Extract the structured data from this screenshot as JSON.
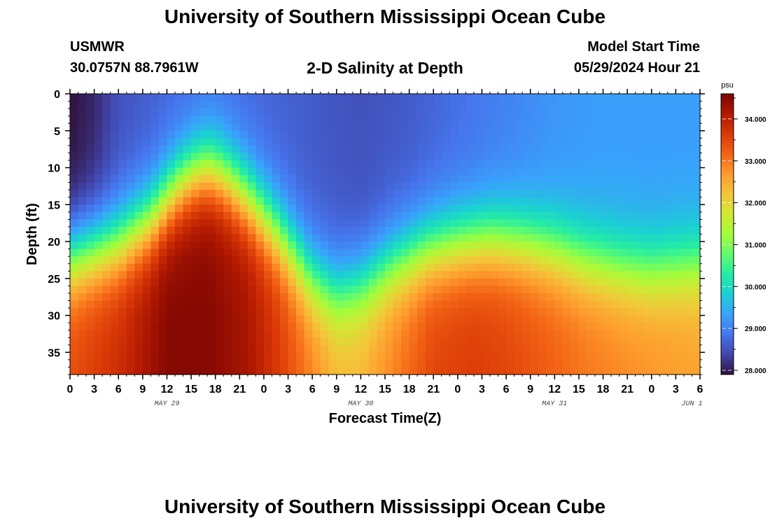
{
  "page": {
    "title": "University of Southern Mississippi Ocean Cube",
    "station": "USMWR",
    "coords": "30.0757N  88.7961W",
    "subtitle": "2-D Salinity at Depth",
    "model_label": "Model Start Time",
    "model_time": "05/29/2024 Hour 21",
    "footer_title": "University of Southern Mississippi Ocean Cube"
  },
  "chart_data": {
    "type": "heatmap",
    "title": "2-D Salinity at Depth",
    "xlabel": "Forecast Time(Z)",
    "ylabel": "Depth (ft)",
    "x_unit": "hours since 05/29 00Z",
    "xlim": [
      0,
      78
    ],
    "ylim": [
      0,
      38
    ],
    "y_inverted": true,
    "x_ticks": [
      0,
      3,
      6,
      9,
      12,
      15,
      18,
      21,
      24,
      27,
      30,
      33,
      36,
      39,
      42,
      45,
      48,
      51,
      54,
      57,
      60,
      63,
      66,
      69,
      72,
      75,
      78
    ],
    "x_tick_labels": [
      "0",
      "3",
      "6",
      "9",
      "12",
      "15",
      "18",
      "21",
      "0",
      "3",
      "6",
      "9",
      "12",
      "15",
      "18",
      "21",
      "0",
      "3",
      "6",
      "9",
      "12",
      "15",
      "18",
      "21",
      "0",
      "3",
      "6"
    ],
    "y_ticks": [
      0,
      5,
      10,
      15,
      20,
      25,
      30,
      35
    ],
    "y_tick_labels": [
      "0",
      "5",
      "10",
      "15",
      "20",
      "25",
      "30",
      "35"
    ],
    "date_labels": [
      {
        "x": 12,
        "label": "MAY 29"
      },
      {
        "x": 36,
        "label": "MAY 30"
      },
      {
        "x": 60,
        "label": "MAY 31"
      },
      {
        "x": 77,
        "label": "JUN 1"
      }
    ],
    "colorbar": {
      "unit": "psu",
      "range": [
        27.9,
        34.6
      ],
      "ticks": [
        28,
        29,
        30,
        31,
        32,
        33,
        34
      ],
      "tick_labels": [
        "28.000",
        "29.000",
        "30.000",
        "31.000",
        "32.000",
        "33.000",
        "34.000"
      ],
      "colormap": [
        "#30123b",
        "#4145ab",
        "#4675ed",
        "#39a2fc",
        "#1bcfd4",
        "#24eca6",
        "#61fc6c",
        "#a4fc3b",
        "#d1e834",
        "#f3c63a",
        "#fe9b2d",
        "#f36315",
        "#d93806",
        "#b11901",
        "#7a0403"
      ]
    },
    "halocline_depth_ft": {
      "x": [
        0,
        6,
        10,
        13,
        15,
        17,
        19,
        22,
        26,
        30,
        33,
        36,
        40,
        44,
        48,
        52,
        56,
        60,
        64,
        68,
        72,
        75,
        78
      ],
      "depth": [
        22,
        20,
        17,
        13,
        11,
        10,
        11,
        14,
        19,
        25,
        27,
        26,
        23,
        21,
        20,
        19.5,
        20,
        21,
        22.5,
        23.5,
        24,
        23.5,
        23
      ]
    },
    "surface_salinity_psu": {
      "x": [
        0,
        3,
        6,
        12,
        18,
        24,
        30,
        36,
        42,
        48,
        54,
        60,
        66,
        72,
        78
      ],
      "values": [
        27.9,
        28.1,
        28.5,
        28.7,
        28.8,
        28.7,
        28.6,
        28.5,
        28.6,
        28.8,
        29.0,
        29.2,
        29.3,
        29.3,
        29.3
      ]
    },
    "bottom_salinity_psu": {
      "x": [
        0,
        6,
        12,
        17,
        22,
        26,
        30,
        33,
        36,
        40,
        45,
        50,
        54,
        58,
        64,
        70,
        78
      ],
      "values": [
        33.4,
        33.8,
        34.5,
        34.5,
        34.2,
        33.6,
        32.9,
        32.4,
        32.4,
        32.9,
        33.5,
        33.6,
        33.5,
        33.3,
        33.0,
        32.8,
        32.6
      ]
    }
  }
}
